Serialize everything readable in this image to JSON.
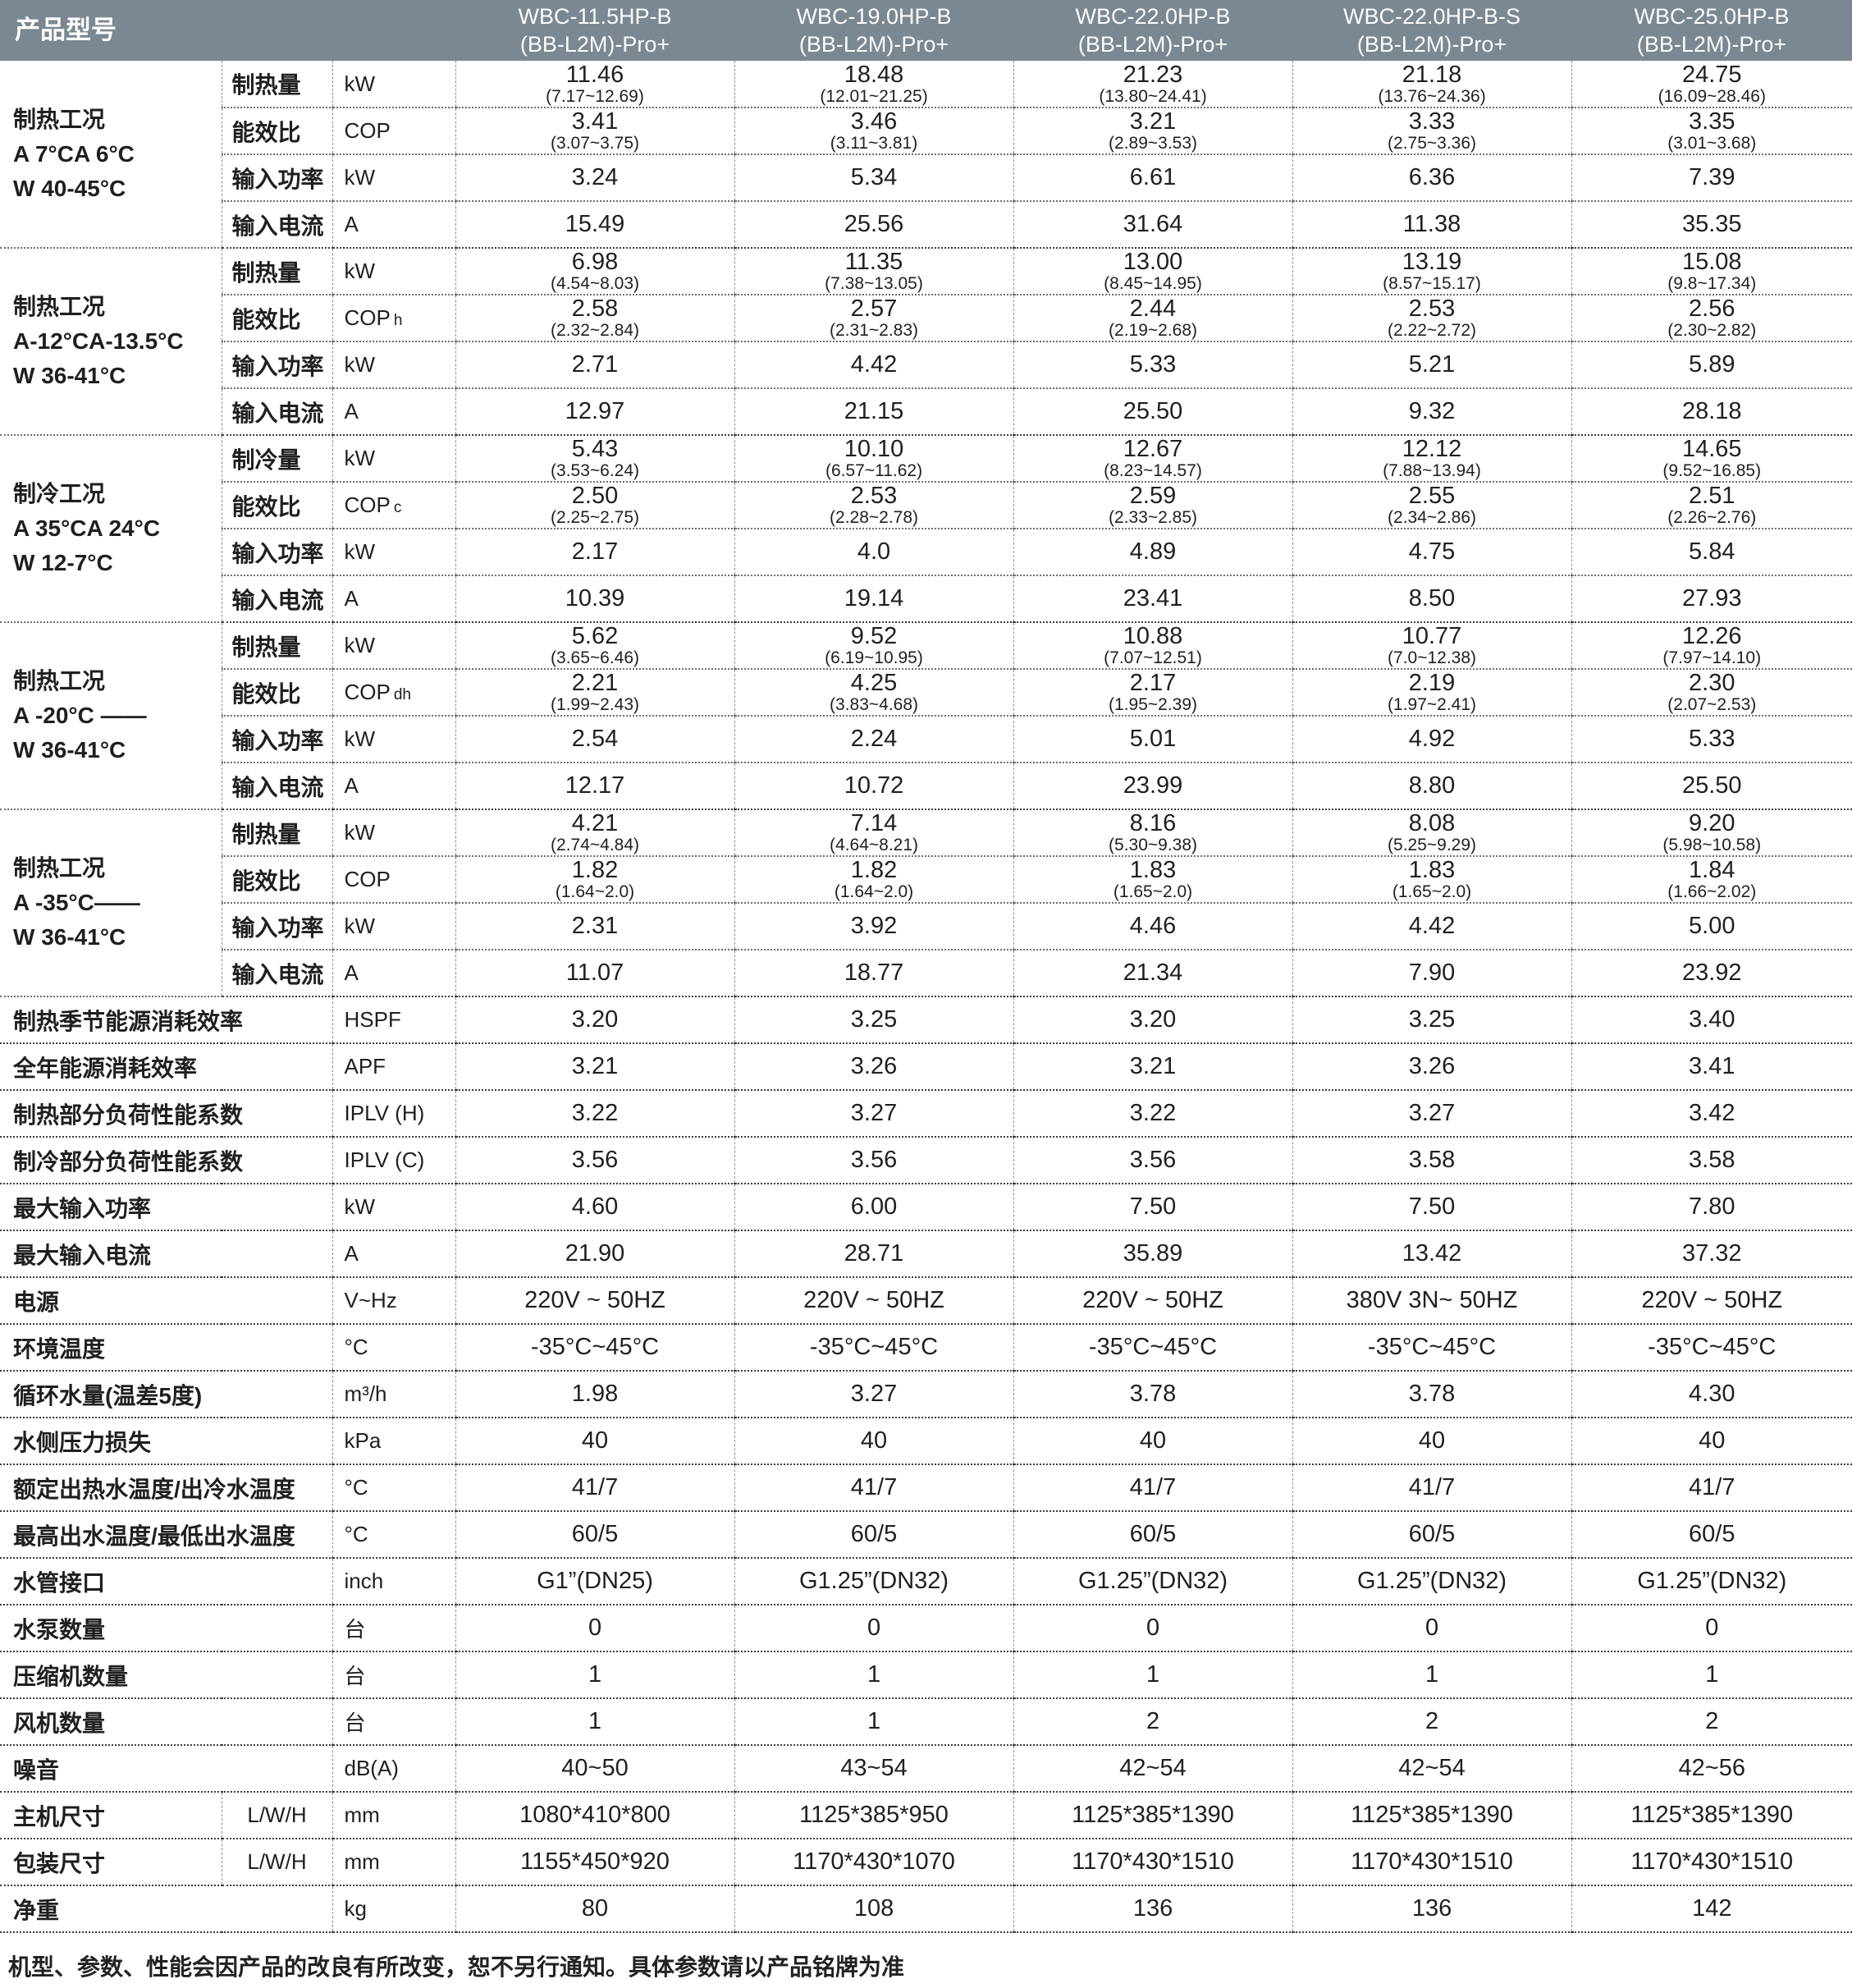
{
  "header": {
    "corner": "产品型号",
    "models": [
      {
        "line1": "WBC-11.5HP-B",
        "line2": "(BB-L2M)-Pro+"
      },
      {
        "line1": "WBC-19.0HP-B",
        "line2": "(BB-L2M)-Pro+"
      },
      {
        "line1": "WBC-22.0HP-B",
        "line2": "(BB-L2M)-Pro+"
      },
      {
        "line1": "WBC-22.0HP-B-S",
        "line2": "(BB-L2M)-Pro+"
      },
      {
        "line1": "WBC-25.0HP-B",
        "line2": "(BB-L2M)-Pro+"
      }
    ]
  },
  "colors": {
    "header_bg": "#7b8891",
    "header_text": "#fbfcfc",
    "body_text": "#1f1f1f"
  },
  "groups": [
    {
      "condition": [
        "制热工况",
        "A 7°CA 6°C",
        "W 40-45°C"
      ],
      "rows": [
        {
          "attr": "制热量",
          "unit": "kW",
          "values": [
            "11.46",
            "18.48",
            "21.23",
            "21.18",
            "24.75"
          ],
          "ranges": [
            "(7.17~12.69)",
            "(12.01~21.25)",
            "(13.80~24.41)",
            "(13.76~24.36)",
            "(16.09~28.46)"
          ]
        },
        {
          "attr": "能效比",
          "unit": "COP",
          "values": [
            "3.41",
            "3.46",
            "3.21",
            "3.33",
            "3.35"
          ],
          "ranges": [
            "(3.07~3.75)",
            "(3.11~3.81)",
            "(2.89~3.53)",
            "(2.75~3.36)",
            "(3.01~3.68)"
          ]
        },
        {
          "attr": "输入功率",
          "unit": "kW",
          "values": [
            "3.24",
            "5.34",
            "6.61",
            "6.36",
            "7.39"
          ]
        },
        {
          "attr": "输入电流",
          "unit": "A",
          "values": [
            "15.49",
            "25.56",
            "31.64",
            "11.38",
            "35.35"
          ]
        }
      ]
    },
    {
      "condition": [
        "制热工况",
        "A-12°CA-13.5°C",
        "W 36-41°C"
      ],
      "rows": [
        {
          "attr": "制热量",
          "unit": "kW",
          "values": [
            "6.98",
            "11.35",
            "13.00",
            "13.19",
            "15.08"
          ],
          "ranges": [
            "(4.54~8.03)",
            "(7.38~13.05)",
            "(8.45~14.95)",
            "(8.57~15.17)",
            "(9.8~17.34)"
          ]
        },
        {
          "attr": "能效比",
          "unit": "COP",
          "unit_sub": "h",
          "values": [
            "2.58",
            "2.57",
            "2.44",
            "2.53",
            "2.56"
          ],
          "ranges": [
            "(2.32~2.84)",
            "(2.31~2.83)",
            "(2.19~2.68)",
            "(2.22~2.72)",
            "(2.30~2.82)"
          ]
        },
        {
          "attr": "输入功率",
          "unit": "kW",
          "values": [
            "2.71",
            "4.42",
            "5.33",
            "5.21",
            "5.89"
          ]
        },
        {
          "attr": "输入电流",
          "unit": "A",
          "values": [
            "12.97",
            "21.15",
            "25.50",
            "9.32",
            "28.18"
          ]
        }
      ]
    },
    {
      "condition": [
        "制冷工况",
        "A 35°CA 24°C",
        "W 12-7°C"
      ],
      "rows": [
        {
          "attr": "制冷量",
          "unit": "kW",
          "values": [
            "5.43",
            "10.10",
            "12.67",
            "12.12",
            "14.65"
          ],
          "ranges": [
            "(3.53~6.24)",
            "(6.57~11.62)",
            "(8.23~14.57)",
            "(7.88~13.94)",
            "(9.52~16.85)"
          ]
        },
        {
          "attr": "能效比",
          "unit": "COP",
          "unit_sub": "c",
          "values": [
            "2.50",
            "2.53",
            "2.59",
            "2.55",
            "2.51"
          ],
          "ranges": [
            "(2.25~2.75)",
            "(2.28~2.78)",
            "(2.33~2.85)",
            "(2.34~2.86)",
            "(2.26~2.76)"
          ]
        },
        {
          "attr": "输入功率",
          "unit": "kW",
          "values": [
            "2.17",
            "4.0",
            "4.89",
            "4.75",
            "5.84"
          ]
        },
        {
          "attr": "输入电流",
          "unit": "A",
          "values": [
            "10.39",
            "19.14",
            "23.41",
            "8.50",
            "27.93"
          ]
        }
      ]
    },
    {
      "condition": [
        "制热工况",
        "A -20°C ——",
        "W 36-41°C"
      ],
      "rows": [
        {
          "attr": "制热量",
          "unit": "kW",
          "values": [
            "5.62",
            "9.52",
            "10.88",
            "10.77",
            "12.26"
          ],
          "ranges": [
            "(3.65~6.46)",
            "(6.19~10.95)",
            "(7.07~12.51)",
            "(7.0~12.38)",
            "(7.97~14.10)"
          ]
        },
        {
          "attr": "能效比",
          "unit": "COP",
          "unit_sub": "dh",
          "values": [
            "2.21",
            "4.25",
            "2.17",
            "2.19",
            "2.30"
          ],
          "ranges": [
            "(1.99~2.43)",
            "(3.83~4.68)",
            "(1.95~2.39)",
            "(1.97~2.41)",
            "(2.07~2.53)"
          ]
        },
        {
          "attr": "输入功率",
          "unit": "kW",
          "values": [
            "2.54",
            "2.24",
            "5.01",
            "4.92",
            "5.33"
          ]
        },
        {
          "attr": "输入电流",
          "unit": "A",
          "values": [
            "12.17",
            "10.72",
            "23.99",
            "8.80",
            "25.50"
          ]
        }
      ]
    },
    {
      "condition": [
        "制热工况",
        "A -35°C——",
        "W 36-41°C"
      ],
      "rows": [
        {
          "attr": "制热量",
          "unit": "kW",
          "values": [
            "4.21",
            "7.14",
            "8.16",
            "8.08",
            "9.20"
          ],
          "ranges": [
            "(2.74~4.84)",
            "(4.64~8.21)",
            "(5.30~9.38)",
            "(5.25~9.29)",
            "(5.98~10.58)"
          ]
        },
        {
          "attr": "能效比",
          "unit": "COP",
          "values": [
            "1.82",
            "1.82",
            "1.83",
            "1.83",
            "1.84"
          ],
          "ranges": [
            "(1.64~2.0)",
            "(1.64~2.0)",
            "(1.65~2.0)",
            "(1.65~2.0)",
            "(1.66~2.02)"
          ]
        },
        {
          "attr": "输入功率",
          "unit": "kW",
          "values": [
            "2.31",
            "3.92",
            "4.46",
            "4.42",
            "5.00"
          ]
        },
        {
          "attr": "输入电流",
          "unit": "A",
          "values": [
            "11.07",
            "18.77",
            "21.34",
            "7.90",
            "23.92"
          ]
        }
      ]
    }
  ],
  "specs": [
    {
      "label": "制热季节能源消耗效率",
      "unit": "HSPF",
      "values": [
        "3.20",
        "3.25",
        "3.20",
        "3.25",
        "3.40"
      ]
    },
    {
      "label": "全年能源消耗效率",
      "unit": "APF",
      "values": [
        "3.21",
        "3.26",
        "3.21",
        "3.26",
        "3.41"
      ]
    },
    {
      "label": "制热部分负荷性能系数",
      "unit": "IPLV (H)",
      "values": [
        "3.22",
        "3.27",
        "3.22",
        "3.27",
        "3.42"
      ]
    },
    {
      "label": "制冷部分负荷性能系数",
      "unit": "IPLV (C)",
      "values": [
        "3.56",
        "3.56",
        "3.56",
        "3.58",
        "3.58"
      ]
    },
    {
      "label": "最大输入功率",
      "unit": "kW",
      "values": [
        "4.60",
        "6.00",
        "7.50",
        "7.50",
        "7.80"
      ]
    },
    {
      "label": "最大输入电流",
      "unit": "A",
      "values": [
        "21.90",
        "28.71",
        "35.89",
        "13.42",
        "37.32"
      ]
    },
    {
      "label": "电源",
      "unit": "V~Hz",
      "values": [
        "220V ~ 50HZ",
        "220V ~ 50HZ",
        "220V ~ 50HZ",
        "380V 3N~ 50HZ",
        "220V ~ 50HZ"
      ]
    },
    {
      "label": "环境温度",
      "unit": "°C",
      "values": [
        "-35°C~45°C",
        "-35°C~45°C",
        "-35°C~45°C",
        "-35°C~45°C",
        "-35°C~45°C"
      ]
    },
    {
      "label": "循环水量(温差5度)",
      "unit": "m³/h",
      "values": [
        "1.98",
        "3.27",
        "3.78",
        "3.78",
        "4.30"
      ]
    },
    {
      "label": "水侧压力损失",
      "unit": "kPa",
      "values": [
        "40",
        "40",
        "40",
        "40",
        "40"
      ]
    },
    {
      "label": "额定出热水温度/出冷水温度",
      "unit": "°C",
      "values": [
        "41/7",
        "41/7",
        "41/7",
        "41/7",
        "41/7"
      ]
    },
    {
      "label": "最高出水温度/最低出水温度",
      "unit": "°C",
      "values": [
        "60/5",
        "60/5",
        "60/5",
        "60/5",
        "60/5"
      ]
    },
    {
      "label": "水管接口",
      "unit": "inch",
      "values": [
        "G1”(DN25)",
        "G1.25”(DN32)",
        "G1.25”(DN32)",
        "G1.25”(DN32)",
        "G1.25”(DN32)"
      ]
    },
    {
      "label": "水泵数量",
      "unit": "台",
      "values": [
        "0",
        "0",
        "0",
        "0",
        "0"
      ]
    },
    {
      "label": "压缩机数量",
      "unit": "台",
      "values": [
        "1",
        "1",
        "1",
        "1",
        "1"
      ]
    },
    {
      "label": "风机数量",
      "unit": "台",
      "values": [
        "1",
        "1",
        "2",
        "2",
        "2"
      ]
    },
    {
      "label": "噪音",
      "unit": "dB(A)",
      "values": [
        "40~50",
        "43~54",
        "42~54",
        "42~54",
        "42~56"
      ]
    },
    {
      "label": "主机尺寸",
      "sub": "L/W/H",
      "unit": "mm",
      "values": [
        "1080*410*800",
        "1125*385*950",
        "1125*385*1390",
        "1125*385*1390",
        "1125*385*1390"
      ]
    },
    {
      "label": "包装尺寸",
      "sub": "L/W/H",
      "unit": "mm",
      "values": [
        "1155*450*920",
        "1170*430*1070",
        "1170*430*1510",
        "1170*430*1510",
        "1170*430*1510"
      ]
    },
    {
      "label": "净重",
      "unit": "kg",
      "values": [
        "80",
        "108",
        "136",
        "136",
        "142"
      ]
    }
  ],
  "footer": "机型、参数、性能会因产品的改良有所改变，恕不另行通知。具体参数请以产品铭牌为准"
}
